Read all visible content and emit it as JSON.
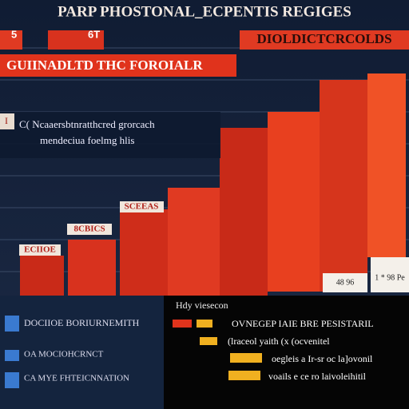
{
  "header": {
    "title": "PARP PHOSTONAL_ECPENTIS REGIGES",
    "badge_left": "5",
    "badge_mid": "6T",
    "badge_right": "DIOLDICTCRCOLDS"
  },
  "banner": {
    "text": "GUIINADLTD THC FOROIALR"
  },
  "callout": {
    "marker": "I",
    "line1": "C( Ncaaersbtnratthcred grorcach",
    "line2": "mendeciua foelmg hlis"
  },
  "bar_labels": [
    "SCEEAS",
    "8CBICS",
    "ECIIOE",
    "48 96",
    "1 * 98 Pe"
  ],
  "legend_left": {
    "items": [
      "DOCIIOE BORIURNEMITH",
      "OA MOCIOHCRNCT",
      "CA MYE FHTEICNNATION"
    ]
  },
  "legend_right": {
    "title": "Hdy viesecon",
    "items": [
      "OVNEGEP IAIE BRE PESISTARIL",
      "(lraceol yaith (x (ocvenitel",
      "oegleis a Ir-sr oc la]ovonil",
      "voails e ce ro laivoleihitil"
    ]
  }
}
